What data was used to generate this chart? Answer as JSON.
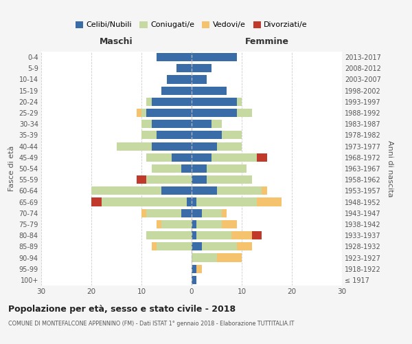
{
  "age_groups": [
    "100+",
    "95-99",
    "90-94",
    "85-89",
    "80-84",
    "75-79",
    "70-74",
    "65-69",
    "60-64",
    "55-59",
    "50-54",
    "45-49",
    "40-44",
    "35-39",
    "30-34",
    "25-29",
    "20-24",
    "15-19",
    "10-14",
    "5-9",
    "0-4"
  ],
  "birth_years": [
    "≤ 1917",
    "1918-1922",
    "1923-1927",
    "1928-1932",
    "1933-1937",
    "1938-1942",
    "1943-1947",
    "1948-1952",
    "1953-1957",
    "1958-1962",
    "1963-1967",
    "1968-1972",
    "1973-1977",
    "1978-1982",
    "1983-1987",
    "1988-1992",
    "1993-1997",
    "1998-2002",
    "2003-2007",
    "2008-2012",
    "2013-2017"
  ],
  "colors": {
    "celibi": "#3a6ca8",
    "coniugati": "#c5d9a0",
    "vedovi": "#f5c36e",
    "divorziati": "#c0392b"
  },
  "males": {
    "celibi": [
      0,
      0,
      0,
      0,
      0,
      0,
      2,
      1,
      6,
      0,
      2,
      4,
      8,
      7,
      8,
      9,
      8,
      6,
      5,
      3,
      7
    ],
    "coniugati": [
      0,
      0,
      0,
      7,
      9,
      6,
      7,
      17,
      14,
      9,
      6,
      5,
      7,
      3,
      2,
      1,
      1,
      0,
      0,
      0,
      0
    ],
    "vedovi": [
      0,
      0,
      0,
      1,
      0,
      1,
      1,
      0,
      0,
      0,
      0,
      0,
      0,
      0,
      0,
      1,
      0,
      0,
      0,
      0,
      0
    ],
    "divorziati": [
      0,
      0,
      0,
      0,
      0,
      0,
      0,
      2,
      0,
      2,
      0,
      0,
      0,
      0,
      0,
      0,
      0,
      0,
      0,
      0,
      0
    ]
  },
  "females": {
    "celibi": [
      1,
      1,
      0,
      2,
      1,
      1,
      2,
      1,
      5,
      3,
      3,
      4,
      5,
      6,
      4,
      9,
      9,
      7,
      3,
      4,
      9
    ],
    "coniugati": [
      0,
      0,
      5,
      7,
      7,
      5,
      4,
      12,
      9,
      9,
      8,
      9,
      5,
      4,
      2,
      3,
      1,
      0,
      0,
      0,
      0
    ],
    "vedovi": [
      0,
      1,
      5,
      3,
      4,
      3,
      1,
      5,
      1,
      0,
      0,
      0,
      0,
      0,
      0,
      0,
      0,
      0,
      0,
      0,
      0
    ],
    "divorziati": [
      0,
      0,
      0,
      0,
      2,
      0,
      0,
      0,
      0,
      0,
      0,
      2,
      0,
      0,
      0,
      0,
      0,
      0,
      0,
      0,
      0
    ]
  },
  "title": "Popolazione per età, sesso e stato civile - 2018",
  "subtitle": "COMUNE DI MONTEFALCONE APPENNINO (FM) - Dati ISTAT 1° gennaio 2018 - Elaborazione TUTTITALIA.IT",
  "xlabel_left": "Maschi",
  "xlabel_right": "Femmine",
  "ylabel_left": "Fasce di età",
  "ylabel_right": "Anni di nascita",
  "xlim": 30,
  "background_color": "#f5f5f5",
  "plot_background": "#ffffff",
  "legend_labels": [
    "Celibi/Nubili",
    "Coniugati/e",
    "Vedovi/e",
    "Divorziati/e"
  ]
}
